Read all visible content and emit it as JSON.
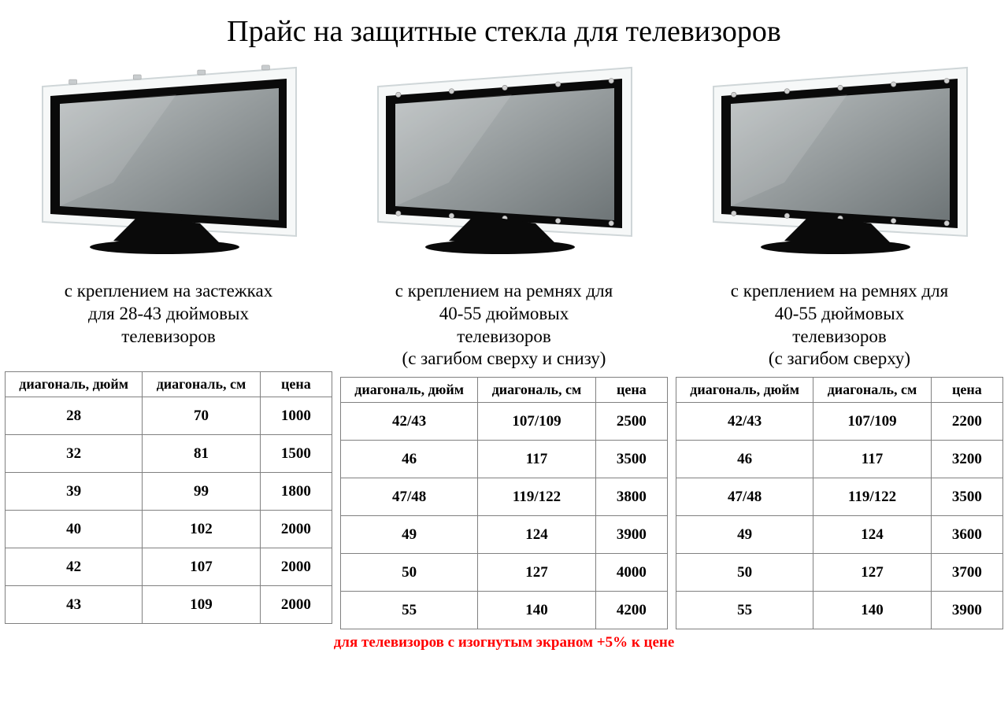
{
  "title": "Прайс на защитные стекла для телевизоров",
  "footnote": "для телевизоров с изогнутым экраном +5% к цене",
  "headers": {
    "inch": "диагональ, дюйм",
    "cm": "диагональ, см",
    "price": "цена"
  },
  "columns": [
    {
      "id": "clip",
      "caption": "с креплением на застежках\nдля 28-43 дюймовых\nтелевизоров",
      "tv": {
        "glass_overhang": false,
        "clips": true
      },
      "rows": [
        {
          "inch": "28",
          "cm": "70",
          "price": "1000"
        },
        {
          "inch": "32",
          "cm": "81",
          "price": "1500"
        },
        {
          "inch": "39",
          "cm": "99",
          "price": "1800"
        },
        {
          "inch": "40",
          "cm": "102",
          "price": "2000"
        },
        {
          "inch": "42",
          "cm": "107",
          "price": "2000"
        },
        {
          "inch": "43",
          "cm": "109",
          "price": "2000"
        }
      ]
    },
    {
      "id": "strap-topbot",
      "caption": "с креплением на ремнях для\n40-55 дюймовых\nтелевизоров\n(с загибом сверху и снизу)",
      "tv": {
        "glass_overhang": true,
        "clips": false,
        "bolts_rows": 2
      },
      "rows": [
        {
          "inch": "42/43",
          "cm": "107/109",
          "price": "2500"
        },
        {
          "inch": "46",
          "cm": "117",
          "price": "3500"
        },
        {
          "inch": "47/48",
          "cm": "119/122",
          "price": "3800"
        },
        {
          "inch": "49",
          "cm": "124",
          "price": "3900"
        },
        {
          "inch": "50",
          "cm": "127",
          "price": "4000"
        },
        {
          "inch": "55",
          "cm": "140",
          "price": "4200"
        }
      ]
    },
    {
      "id": "strap-top",
      "caption": "с креплением на ремнях для\n40-55 дюймовых\nтелевизоров\n(с загибом сверху)",
      "tv": {
        "glass_overhang": true,
        "clips": false,
        "bolts_rows": 2
      },
      "rows": [
        {
          "inch": "42/43",
          "cm": "107/109",
          "price": "2200"
        },
        {
          "inch": "46",
          "cm": "117",
          "price": "3200"
        },
        {
          "inch": "47/48",
          "cm": "119/122",
          "price": "3500"
        },
        {
          "inch": "49",
          "cm": "124",
          "price": "3600"
        },
        {
          "inch": "50",
          "cm": "127",
          "price": "3700"
        },
        {
          "inch": "55",
          "cm": "140",
          "price": "3900"
        }
      ]
    }
  ],
  "style": {
    "page_bg": "#ffffff",
    "text_color": "#000000",
    "border_color": "#808080",
    "footnote_color": "#ff0000",
    "title_fontsize": 38,
    "caption_fontsize": 23,
    "table_fontsize": 19,
    "tv": {
      "bezel": "#0a0a0a",
      "screen_light": "#bcc1c2",
      "screen_dark": "#6e7577",
      "glass_edge": "#cfd6d8",
      "bolt": "#d0d0d0",
      "stand": "#0a0a0a"
    }
  }
}
